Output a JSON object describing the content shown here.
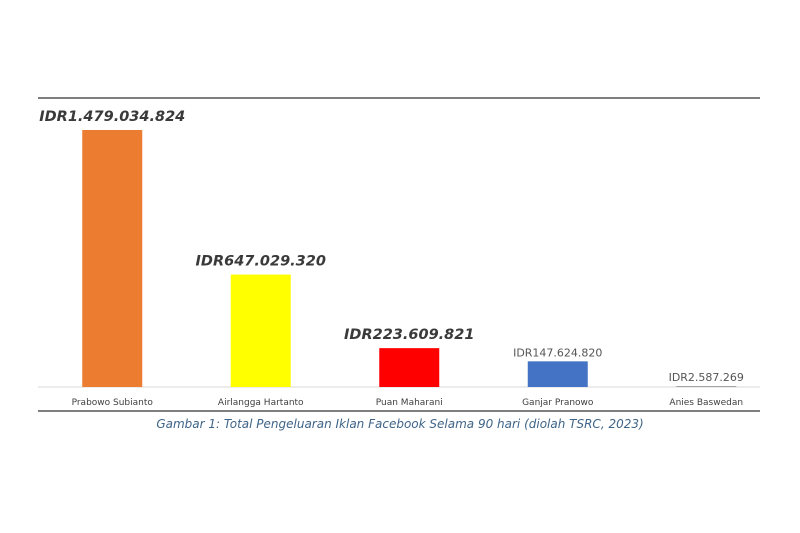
{
  "chart_data": {
    "type": "bar",
    "categories": [
      "Prabowo Subianto",
      "Airlangga Hartanto",
      "Puan Maharani",
      "Ganjar Pranowo",
      "Anies Baswedan"
    ],
    "values": [
      1479034824,
      647029320,
      223609821,
      147624820,
      2587269
    ],
    "data_labels": [
      "IDR1.479.034.824",
      "IDR647.029.320",
      "IDR223.609.821",
      "IDR147.624.820",
      "IDR2.587.269"
    ],
    "label_emphasis": [
      "bold",
      "bold",
      "bold",
      "normal",
      "normal"
    ],
    "colors": [
      "#ec7c30",
      "#ffff00",
      "#ff0000",
      "#4472c4",
      "#a5a5a5"
    ],
    "caption": "Gambar 1: Total Pengeluaran Iklan Facebook Selama 90 hari (diolah TSRC, 2023)",
    "ylim": [
      0,
      1479034824
    ],
    "grid": false,
    "legend": "none"
  }
}
